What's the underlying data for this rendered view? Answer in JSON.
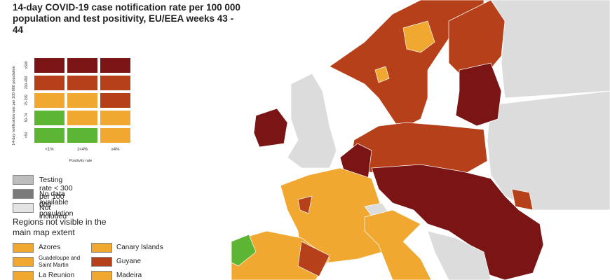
{
  "header": {
    "title": "14-day COVID-19 case notification rate per 100 000 population and test positivity, EU/EEA weeks 43 - 44"
  },
  "matrix": {
    "y_label": "14-day notification rate per 100 000 population",
    "x_label": "Positivity rate",
    "column_labels": [
      "<1%",
      "1<4%",
      "≥4%"
    ],
    "rows": [
      {
        "label": "≥500",
        "colors": [
          "#7b1414",
          "#7b1414",
          "#7b1414"
        ]
      },
      {
        "label": "200-499",
        "colors": [
          "#b5401a",
          "#b5401a",
          "#b5401a"
        ]
      },
      {
        "label": "75-199",
        "colors": [
          "#f0a830",
          "#f0a830",
          "#b5401a"
        ]
      },
      {
        "label": "50-74",
        "colors": [
          "#5db633",
          "#f0a830",
          "#f0a830"
        ]
      },
      {
        "label": "<50",
        "colors": [
          "#5db633",
          "#5db633",
          "#f0a830"
        ]
      }
    ]
  },
  "legend": [
    {
      "label": "Testing rate < 300 per 100 000 population",
      "color": "#bdbdbd"
    },
    {
      "label": "No data available",
      "color": "#7a7a7a"
    },
    {
      "label": "Not included",
      "color": "#e3e3e3"
    }
  ],
  "regions": {
    "heading": "Regions not visible in the main map extent",
    "items": [
      {
        "label": "Azores",
        "color": "#f0a830"
      },
      {
        "label": "Canary Islands",
        "color": "#f0a830"
      },
      {
        "label": "Guadeloupe and Saint Martin",
        "color": "#f0a830"
      },
      {
        "label": "Guyane",
        "color": "#b5401a"
      },
      {
        "label": "La Reunion",
        "color": "#f0a830"
      },
      {
        "label": "Madeira",
        "color": "#f0a830"
      }
    ]
  }
}
